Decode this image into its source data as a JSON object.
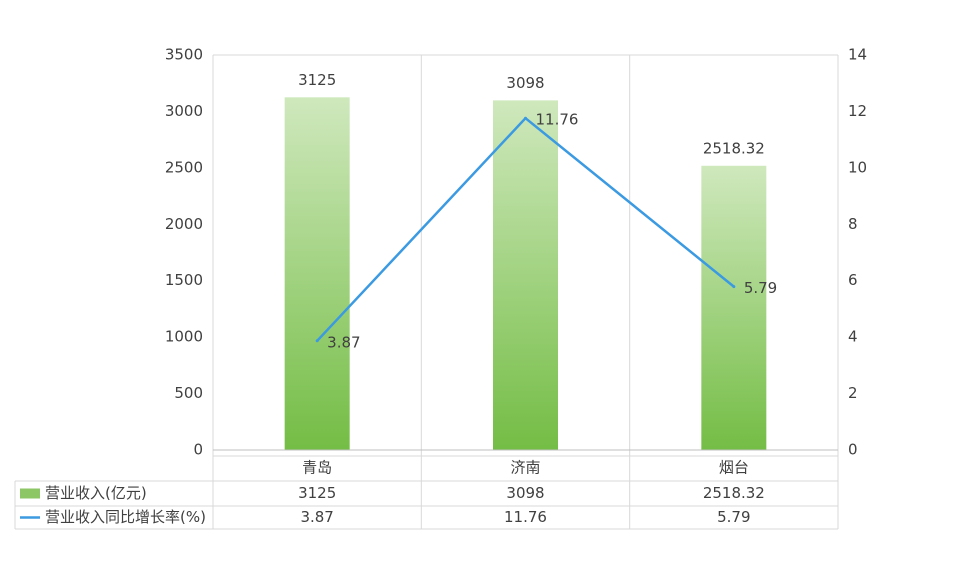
{
  "chart_data": {
    "type": "bar+line",
    "categories": [
      "青岛",
      "济南",
      "烟台"
    ],
    "series": [
      {
        "name": "营业收入(亿元)",
        "type": "bar",
        "axis": "left",
        "values": [
          3125,
          3098,
          2518.32
        ],
        "color": "#8cc665"
      },
      {
        "name": "营业收入同比增长率(%)",
        "type": "line",
        "axis": "right",
        "values": [
          3.87,
          11.76,
          5.79
        ],
        "color": "#3b9ae1"
      }
    ],
    "y_left": {
      "min": 0,
      "max": 3500,
      "step": 500,
      "ticks": [
        "0",
        "500",
        "1000",
        "1500",
        "2000",
        "2500",
        "3000",
        "3500"
      ]
    },
    "y_right": {
      "min": 0,
      "max": 14,
      "step": 2,
      "ticks": [
        "0",
        "2",
        "4",
        "6",
        "8",
        "10",
        "12",
        "14"
      ]
    },
    "bar_labels": [
      "3125",
      "3098",
      "2518.32"
    ],
    "line_labels": [
      "3.87",
      "11.76",
      "5.79"
    ],
    "data_table": {
      "rows": [
        {
          "legend": "营业收入(亿元)",
          "values": [
            "3125",
            "3098",
            "2518.32"
          ]
        },
        {
          "legend": "营业收入同比增长率(%)",
          "values": [
            "3.87",
            "11.76",
            "5.79"
          ]
        }
      ]
    },
    "grid": true
  }
}
